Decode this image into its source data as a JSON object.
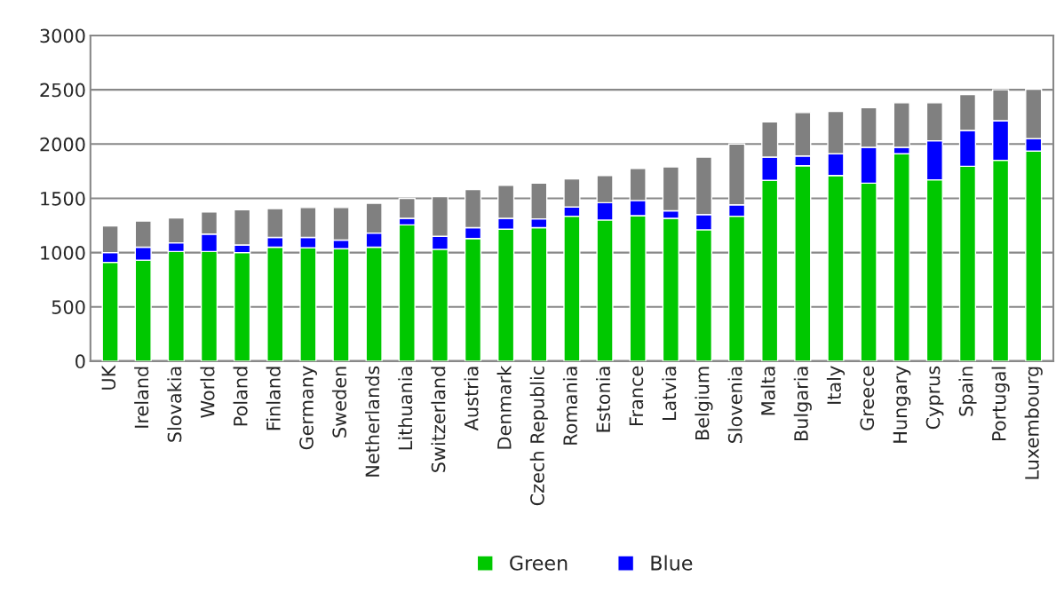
{
  "chart_data": {
    "type": "bar",
    "stacked": true,
    "categories": [
      "UK",
      "Ireland",
      "Slovakia",
      "World",
      "Poland",
      "Finland",
      "Germany",
      "Sweden",
      "Netherlands",
      "Lithuania",
      "Switzerland",
      "Austria",
      "Denmark",
      "Czech Republic",
      "Romania",
      "Estonia",
      "France",
      "Latvia",
      "Belgium",
      "Slovenia",
      "Malta",
      "Bulgaria",
      "Italy",
      "Greece",
      "Hungary",
      "Cyprus",
      "Spain",
      "Portugal",
      "Luxembourg"
    ],
    "series": [
      {
        "name": "Green",
        "color": "#00c800",
        "values": [
          910,
          930,
          1010,
          1010,
          1000,
          1050,
          1045,
          1035,
          1050,
          1255,
          1030,
          1130,
          1215,
          1230,
          1335,
          1300,
          1340,
          1315,
          1210,
          1335,
          1665,
          1800,
          1710,
          1640,
          1910,
          1670,
          1795,
          1850,
          1935
        ]
      },
      {
        "name": "Blue",
        "color": "#0000ff",
        "values": [
          90,
          120,
          80,
          160,
          70,
          90,
          95,
          80,
          130,
          60,
          120,
          100,
          100,
          80,
          85,
          160,
          140,
          70,
          140,
          105,
          215,
          90,
          200,
          330,
          60,
          360,
          330,
          365,
          115
        ]
      },
      {
        "color": "#808080",
        "values": [
          245,
          240,
          230,
          205,
          325,
          265,
          275,
          300,
          275,
          185,
          365,
          350,
          305,
          330,
          260,
          250,
          295,
          405,
          530,
          560,
          325,
          400,
          390,
          365,
          410,
          350,
          330,
          285,
          455
        ]
      }
    ],
    "ylim": [
      0,
      3000
    ],
    "yticks": [
      0,
      500,
      1000,
      1500,
      2000,
      2500,
      3000
    ],
    "grid": "y",
    "legend": "bottom"
  }
}
